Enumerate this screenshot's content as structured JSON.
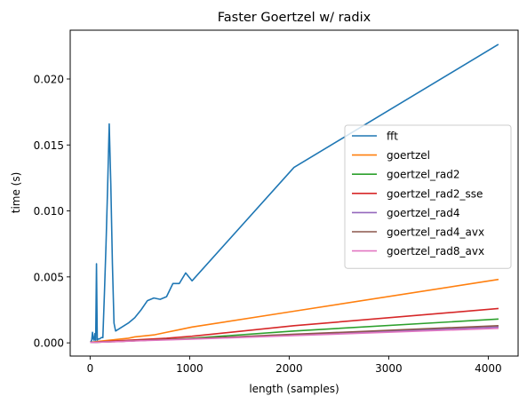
{
  "chart_data": {
    "type": "line",
    "title": "Faster Goertzel w/ radix",
    "xlabel": "length (samples)",
    "ylabel": "time (s)",
    "xlim": [
      -200,
      4300
    ],
    "ylim": [
      -0.001,
      0.0237
    ],
    "xticks": [
      0,
      1000,
      2000,
      3000,
      4000
    ],
    "xtick_labels": [
      "0",
      "1000",
      "2000",
      "3000",
      "4000"
    ],
    "yticks": [
      0.0,
      0.005,
      0.01,
      0.015,
      0.02
    ],
    "ytick_labels": [
      "0.000",
      "0.005",
      "0.010",
      "0.015",
      "0.020"
    ],
    "grid": false,
    "legend_position": "center-right",
    "series": [
      {
        "name": "fft",
        "color": "#1f77b4",
        "x": [
          8,
          16,
          24,
          32,
          40,
          48,
          56,
          64,
          72,
          80,
          96,
          112,
          128,
          144,
          160,
          176,
          192,
          208,
          224,
          240,
          256,
          320,
          384,
          448,
          512,
          576,
          640,
          704,
          768,
          832,
          896,
          960,
          1024,
          2048,
          4096
        ],
        "y": [
          0.0001,
          0.0002,
          0.0008,
          0.0003,
          0.0002,
          0.0007,
          0.0002,
          0.006,
          0.0002,
          0.0003,
          0.0003,
          0.0004,
          0.0004,
          0.0038,
          0.0075,
          0.0118,
          0.0166,
          0.012,
          0.006,
          0.0015,
          0.0009,
          0.0012,
          0.0015,
          0.0019,
          0.0025,
          0.0032,
          0.0034,
          0.0033,
          0.0035,
          0.0045,
          0.0045,
          0.0053,
          0.0047,
          0.0133,
          0.0226
        ]
      },
      {
        "name": "goertzel",
        "color": "#ff7f0e",
        "x": [
          8,
          64,
          128,
          192,
          256,
          320,
          384,
          448,
          512,
          640,
          768,
          896,
          1024,
          2048,
          4096
        ],
        "y": [
          5e-05,
          0.0001,
          0.00015,
          0.0002,
          0.00025,
          0.0003,
          0.00035,
          0.00045,
          0.0005,
          0.0006,
          0.0008,
          0.001,
          0.0012,
          0.0024,
          0.0048
        ]
      },
      {
        "name": "goertzel_rad2",
        "color": "#2ca02c",
        "x": [
          8,
          256,
          512,
          768,
          1024,
          2048,
          4096
        ],
        "y": [
          4e-05,
          0.0001,
          0.00018,
          0.00025,
          0.00035,
          0.0009,
          0.0018
        ]
      },
      {
        "name": "goertzel_rad2_sse",
        "color": "#d62728",
        "x": [
          8,
          256,
          512,
          768,
          1024,
          2048,
          4096
        ],
        "y": [
          4e-05,
          0.00015,
          0.00025,
          0.00035,
          0.0005,
          0.0013,
          0.0026
        ]
      },
      {
        "name": "goertzel_rad4",
        "color": "#9467bd",
        "x": [
          8,
          256,
          512,
          768,
          1024,
          2048,
          4096
        ],
        "y": [
          3e-05,
          0.0001,
          0.00018,
          0.00025,
          0.0003,
          0.0006,
          0.0012
        ]
      },
      {
        "name": "goertzel_rad4_avx",
        "color": "#8c564b",
        "x": [
          8,
          256,
          512,
          768,
          1024,
          2048,
          4096
        ],
        "y": [
          3e-05,
          0.0001,
          0.00018,
          0.00026,
          0.00032,
          0.00065,
          0.0013
        ]
      },
      {
        "name": "goertzel_rad8_avx",
        "color": "#e377c2",
        "x": [
          8,
          256,
          512,
          768,
          1024,
          2048,
          4096
        ],
        "y": [
          3e-05,
          9e-05,
          0.00016,
          0.00022,
          0.00028,
          0.00055,
          0.0011
        ]
      }
    ]
  }
}
